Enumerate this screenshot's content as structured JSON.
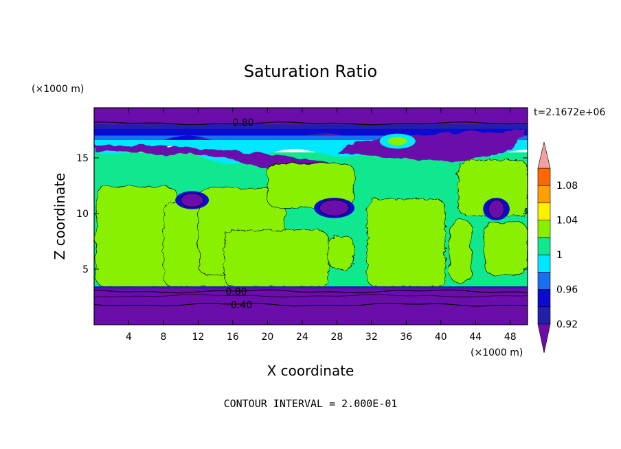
{
  "chart_data": {
    "type": "heatmap",
    "title": "Saturation Ratio",
    "xlabel": "X coordinate",
    "ylabel": "Z coordinate",
    "x_unit": "(×1000 m)",
    "y_unit": "(×1000 m)",
    "time_label": "t=2.1672e+06",
    "footer": "CONTOUR INTERVAL = 2.000E-01",
    "xlim": [
      0,
      50
    ],
    "ylim": [
      0,
      19.5
    ],
    "x_ticks": [
      4,
      8,
      12,
      16,
      20,
      24,
      28,
      32,
      36,
      40,
      44,
      48
    ],
    "y_ticks": [
      5,
      10,
      15
    ],
    "colorbar": {
      "levels": [
        0.92,
        0.94,
        0.96,
        0.98,
        1,
        1.02,
        1.04,
        1.06,
        1.08,
        1.1
      ],
      "tick_labels": [
        "0.92",
        "0.96",
        "1",
        "1.04",
        "1.08"
      ],
      "colors": [
        "#6a0dab",
        "#2020a8",
        "#0a0ad0",
        "#1a6ef0",
        "#00e8ff",
        "#10e890",
        "#88f000",
        "#fff000",
        "#ffa000",
        "#ff6800",
        "#ff2020",
        "#f4a0a0"
      ],
      "extend": "both"
    },
    "contour_labels": [
      {
        "text": "0.80",
        "x": 17.2,
        "z": 18.2
      },
      {
        "text": "0.80",
        "x": 16.4,
        "z": 3.0
      },
      {
        "text": "0.40",
        "x": 17.0,
        "z": 1.8
      }
    ],
    "regions": {
      "lower_dry_layer": {
        "z": [
          0,
          3.4
        ],
        "value": 0.9
      },
      "upper_dry_layer": {
        "z": [
          18.3,
          19.5
        ],
        "value": 0.85
      },
      "cloud_layer_base": 3.4,
      "cloud_layer_top": 15.5,
      "saturated_region_value": 1.0,
      "near_saturated_value": 0.98
    },
    "grid": false
  }
}
